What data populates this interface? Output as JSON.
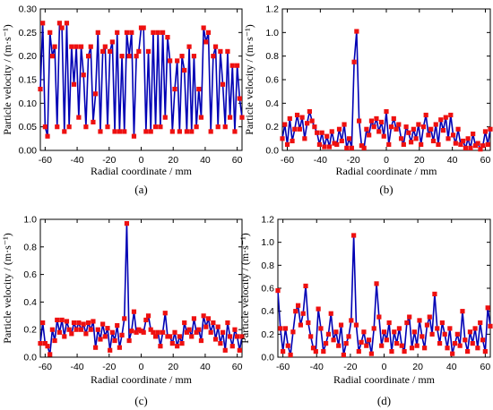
{
  "colors": {
    "line": "#0000b4",
    "marker": "#ee1010",
    "axis": "#000000",
    "background": "#ffffff"
  },
  "chart_data": [
    {
      "type": "line",
      "panel_label": "(a)",
      "xlabel": "Radial coordinate / mm",
      "ylabel": "Particle velocity / (m·s⁻¹)",
      "xlim": [
        -63,
        63
      ],
      "ylim": [
        0,
        0.3
      ],
      "xticks": [
        -60,
        -40,
        -20,
        0,
        20,
        40,
        60
      ],
      "yticks": [
        0.0,
        0.05,
        0.1,
        0.15,
        0.2,
        0.25,
        0.3
      ],
      "ytick_labels": [
        "0.00",
        "0.05",
        "0.10",
        "0.15",
        "0.20",
        "0.25",
        "0.30"
      ],
      "grid": false,
      "series": [
        {
          "x": [
            -63,
            -61.5,
            -60,
            -58.5,
            -57,
            -55.5,
            -54,
            -52.5,
            -51,
            -49.5,
            -48,
            -46.5,
            -45,
            -43.5,
            -42,
            -40.5,
            -39,
            -37.5,
            -36,
            -34.5,
            -33,
            -31.5,
            -30,
            -28.5,
            -27,
            -25.5,
            -24,
            -22.5,
            -21,
            -19.5,
            -18,
            -16.5,
            -15,
            -13.5,
            -12,
            -10.5,
            -9,
            -7.5,
            -6,
            -4.5,
            -3,
            -1.5,
            0,
            1.5,
            3,
            4.5,
            6,
            7.5,
            9,
            10.5,
            12,
            13.5,
            15,
            16.5,
            18,
            19.5,
            21,
            22.5,
            24,
            25.5,
            27,
            28.5,
            30,
            31.5,
            33,
            34.5,
            36,
            37.5,
            39,
            40.5,
            42,
            43.5,
            45,
            46.5,
            48,
            49.5,
            51,
            52.5,
            54,
            55.5,
            57,
            58.5,
            60,
            61.5,
            63
          ],
          "y": [
            0.13,
            0.27,
            0.05,
            0.03,
            0.25,
            0.2,
            0.22,
            0.05,
            0.27,
            0.26,
            0.04,
            0.27,
            0.05,
            0.22,
            0.14,
            0.22,
            0.07,
            0.22,
            0.16,
            0.05,
            0.2,
            0.22,
            0.06,
            0.12,
            0.25,
            0.04,
            0.21,
            0.22,
            0.05,
            0.21,
            0.23,
            0.04,
            0.25,
            0.04,
            0.2,
            0.04,
            0.25,
            0.2,
            0.25,
            0.03,
            0.2,
            0.21,
            0.26,
            0.26,
            0.04,
            0.21,
            0.04,
            0.25,
            0.05,
            0.25,
            0.05,
            0.25,
            0.07,
            0.24,
            0.19,
            0.04,
            0.13,
            0.19,
            0.04,
            0.2,
            0.17,
            0.04,
            0.22,
            0.04,
            0.2,
            0.05,
            0.13,
            0.07,
            0.26,
            0.23,
            0.25,
            0.04,
            0.2,
            0.22,
            0.05,
            0.21,
            0.14,
            0.05,
            0.21,
            0.07,
            0.18,
            0.04,
            0.18,
            0.11,
            0.07
          ]
        }
      ]
    },
    {
      "type": "line",
      "panel_label": "(b)",
      "xlabel": "Radial coordinate / mm",
      "ylabel": "Particle velocity / (m·s⁻¹)",
      "xlim": [
        -63,
        63
      ],
      "ylim": [
        0,
        1.2
      ],
      "xticks": [
        -60,
        -40,
        -20,
        0,
        20,
        40,
        60
      ],
      "yticks": [
        0.0,
        0.2,
        0.4,
        0.6,
        0.8,
        1.0,
        1.2
      ],
      "ytick_labels": [
        "0.0",
        "0.2",
        "0.4",
        "0.6",
        "0.8",
        "1.0",
        "1.2"
      ],
      "grid": false,
      "series": [
        {
          "x": [
            -63,
            -61.5,
            -60,
            -58.5,
            -57,
            -55.5,
            -54,
            -52.5,
            -51,
            -49.5,
            -48,
            -46.5,
            -45,
            -43.5,
            -42,
            -40.5,
            -39,
            -37.5,
            -36,
            -34.5,
            -33,
            -31.5,
            -30,
            -28.5,
            -27,
            -25.5,
            -24,
            -22.5,
            -21,
            -19.5,
            -18,
            -16.5,
            -15,
            -13.5,
            -12,
            -10.5,
            -9,
            -7.5,
            -6,
            -4.5,
            -3,
            -1.5,
            0,
            1.5,
            3,
            4.5,
            6,
            7.5,
            9,
            10.5,
            12,
            13.5,
            15,
            16.5,
            18,
            19.5,
            21,
            22.5,
            24,
            25.5,
            27,
            28.5,
            30,
            31.5,
            33,
            34.5,
            36,
            37.5,
            39,
            40.5,
            42,
            43.5,
            45,
            46.5,
            48,
            49.5,
            51,
            52.5,
            54,
            55.5,
            57,
            58.5,
            60,
            61.5,
            63
          ],
          "y": [
            0.1,
            0.22,
            0.05,
            0.27,
            0.08,
            0.18,
            0.3,
            0.18,
            0.28,
            0.1,
            0.23,
            0.33,
            0.25,
            0.2,
            0.15,
            0.05,
            0.15,
            0.03,
            0.12,
            0.03,
            0.16,
            0.06,
            0.05,
            0.18,
            0.08,
            0.22,
            0.02,
            0.1,
            0.02,
            0.75,
            1.01,
            0.25,
            0.04,
            0.02,
            0.18,
            0.13,
            0.25,
            0.2,
            0.27,
            0.16,
            0.24,
            0.12,
            0.33,
            0.05,
            0.2,
            0.27,
            0.18,
            0.22,
            0.1,
            0.05,
            0.2,
            0.15,
            0.07,
            0.18,
            0.1,
            0.22,
            0.05,
            0.2,
            0.3,
            0.13,
            0.18,
            0.08,
            0.22,
            0.05,
            0.26,
            0.17,
            0.28,
            0.1,
            0.3,
            0.13,
            0.06,
            0.18,
            0.05,
            0.08,
            0.02,
            0.1,
            0.02,
            0.14,
            0.04,
            0.06,
            0.01,
            0.04,
            0.16,
            0.05,
            0.18
          ]
        }
      ]
    },
    {
      "type": "line",
      "panel_label": "(c)",
      "xlabel": "Radial coordinate / mm",
      "ylabel": "Particle velocity / (m·s⁻¹)",
      "xlim": [
        -63,
        63
      ],
      "ylim": [
        0,
        1.0
      ],
      "xticks": [
        -60,
        -40,
        -20,
        0,
        20,
        40,
        60
      ],
      "yticks": [
        0.0,
        0.2,
        0.4,
        0.6,
        0.8,
        1.0
      ],
      "ytick_labels": [
        "0.0",
        "0.2",
        "0.4",
        "0.6",
        "0.8",
        "1.0"
      ],
      "grid": false,
      "series": [
        {
          "x": [
            -63,
            -61.5,
            -60,
            -58.5,
            -57,
            -55.5,
            -54,
            -52.5,
            -51,
            -49.5,
            -48,
            -46.5,
            -45,
            -43.5,
            -42,
            -40.5,
            -39,
            -37.5,
            -36,
            -34.5,
            -33,
            -31.5,
            -30,
            -28.5,
            -27,
            -25.5,
            -24,
            -22.5,
            -21,
            -19.5,
            -18,
            -16.5,
            -15,
            -13.5,
            -12,
            -10.5,
            -9,
            -7.5,
            -6,
            -4.5,
            -3,
            -1.5,
            0,
            1.5,
            3,
            4.5,
            6,
            7.5,
            9,
            10.5,
            12,
            13.5,
            15,
            16.5,
            18,
            19.5,
            21,
            22.5,
            24,
            25.5,
            27,
            28.5,
            30,
            31.5,
            33,
            34.5,
            36,
            37.5,
            39,
            40.5,
            42,
            43.5,
            45,
            46.5,
            48,
            49.5,
            51,
            52.5,
            54,
            55.5,
            57,
            58.5,
            60,
            61.5,
            63
          ],
          "y": [
            0.1,
            0.25,
            0.1,
            0.08,
            0.02,
            0.2,
            0.12,
            0.27,
            0.18,
            0.27,
            0.15,
            0.26,
            0.2,
            0.17,
            0.25,
            0.2,
            0.25,
            0.2,
            0.24,
            0.17,
            0.25,
            0.2,
            0.26,
            0.07,
            0.2,
            0.13,
            0.24,
            0.15,
            0.21,
            0.05,
            0.18,
            0.12,
            0.23,
            0.07,
            0.16,
            0.28,
            0.97,
            0.12,
            0.19,
            0.33,
            0.18,
            0.2,
            0.19,
            0.18,
            0.27,
            0.3,
            0.2,
            0.18,
            0.15,
            0.18,
            0.08,
            0.18,
            0.32,
            0.15,
            0.15,
            0.1,
            0.18,
            0.08,
            0.15,
            0.1,
            0.25,
            0.18,
            0.2,
            0.15,
            0.28,
            0.18,
            0.2,
            0.12,
            0.3,
            0.22,
            0.28,
            0.18,
            0.25,
            0.13,
            0.22,
            0.1,
            0.18,
            0.05,
            0.25,
            0.15,
            0.08,
            0.2,
            0.15,
            0.05,
            0.15
          ]
        }
      ]
    },
    {
      "type": "line",
      "panel_label": "(d)",
      "xlabel": "Radial coordinate / mm",
      "ylabel": "Particle velocity / (m·s⁻¹)",
      "xlim": [
        -63,
        63
      ],
      "ylim": [
        0,
        1.2
      ],
      "xticks": [
        -60,
        -40,
        -20,
        0,
        20,
        40,
        60
      ],
      "yticks": [
        0.0,
        0.2,
        0.4,
        0.6,
        0.8,
        1.0,
        1.2
      ],
      "ytick_labels": [
        "0.0",
        "0.2",
        "0.4",
        "0.6",
        "0.8",
        "1.0",
        "1.2"
      ],
      "grid": false,
      "series": [
        {
          "x": [
            -63,
            -61.5,
            -60,
            -58.5,
            -57,
            -55.5,
            -54,
            -52.5,
            -51,
            -49.5,
            -48,
            -46.5,
            -45,
            -43.5,
            -42,
            -40.5,
            -39,
            -37.5,
            -36,
            -34.5,
            -33,
            -31.5,
            -30,
            -28.5,
            -27,
            -25.5,
            -24,
            -22.5,
            -21,
            -19.5,
            -18,
            -16.5,
            -15,
            -13.5,
            -12,
            -10.5,
            -9,
            -7.5,
            -6,
            -4.5,
            -3,
            -1.5,
            0,
            1.5,
            3,
            4.5,
            6,
            7.5,
            9,
            10.5,
            12,
            13.5,
            15,
            16.5,
            18,
            19.5,
            21,
            22.5,
            24,
            25.5,
            27,
            28.5,
            30,
            31.5,
            33,
            34.5,
            36,
            37.5,
            39,
            40.5,
            42,
            43.5,
            45,
            46.5,
            48,
            49.5,
            51,
            52.5,
            54,
            55.5,
            57,
            58.5,
            60,
            61.5,
            63
          ],
          "y": [
            0.58,
            0.25,
            0.05,
            0.25,
            0.1,
            0.02,
            0.22,
            0.4,
            0.45,
            0.28,
            0.38,
            0.62,
            0.3,
            0.18,
            0.08,
            0.05,
            0.42,
            0.25,
            0.05,
            0.12,
            0.2,
            0.38,
            0.15,
            0.22,
            0.1,
            0.28,
            0.02,
            0.12,
            0.18,
            0.32,
            1.06,
            0.28,
            0.05,
            0.13,
            0.22,
            0.1,
            0.15,
            0.03,
            0.25,
            0.64,
            0.35,
            0.1,
            0.22,
            0.15,
            0.3,
            0.05,
            0.22,
            0.12,
            0.25,
            0.1,
            0.05,
            0.3,
            0.35,
            0.08,
            0.22,
            0.1,
            0.32,
            0.18,
            0.08,
            0.28,
            0.35,
            0.2,
            0.55,
            0.25,
            0.12,
            0.3,
            0.2,
            0.08,
            0.25,
            0.03,
            0.12,
            0.2,
            0.1,
            0.4,
            0.15,
            0.05,
            0.22,
            0.12,
            0.25,
            0.08,
            0.3,
            0.15,
            0.05,
            0.43,
            0.27
          ]
        }
      ]
    }
  ]
}
